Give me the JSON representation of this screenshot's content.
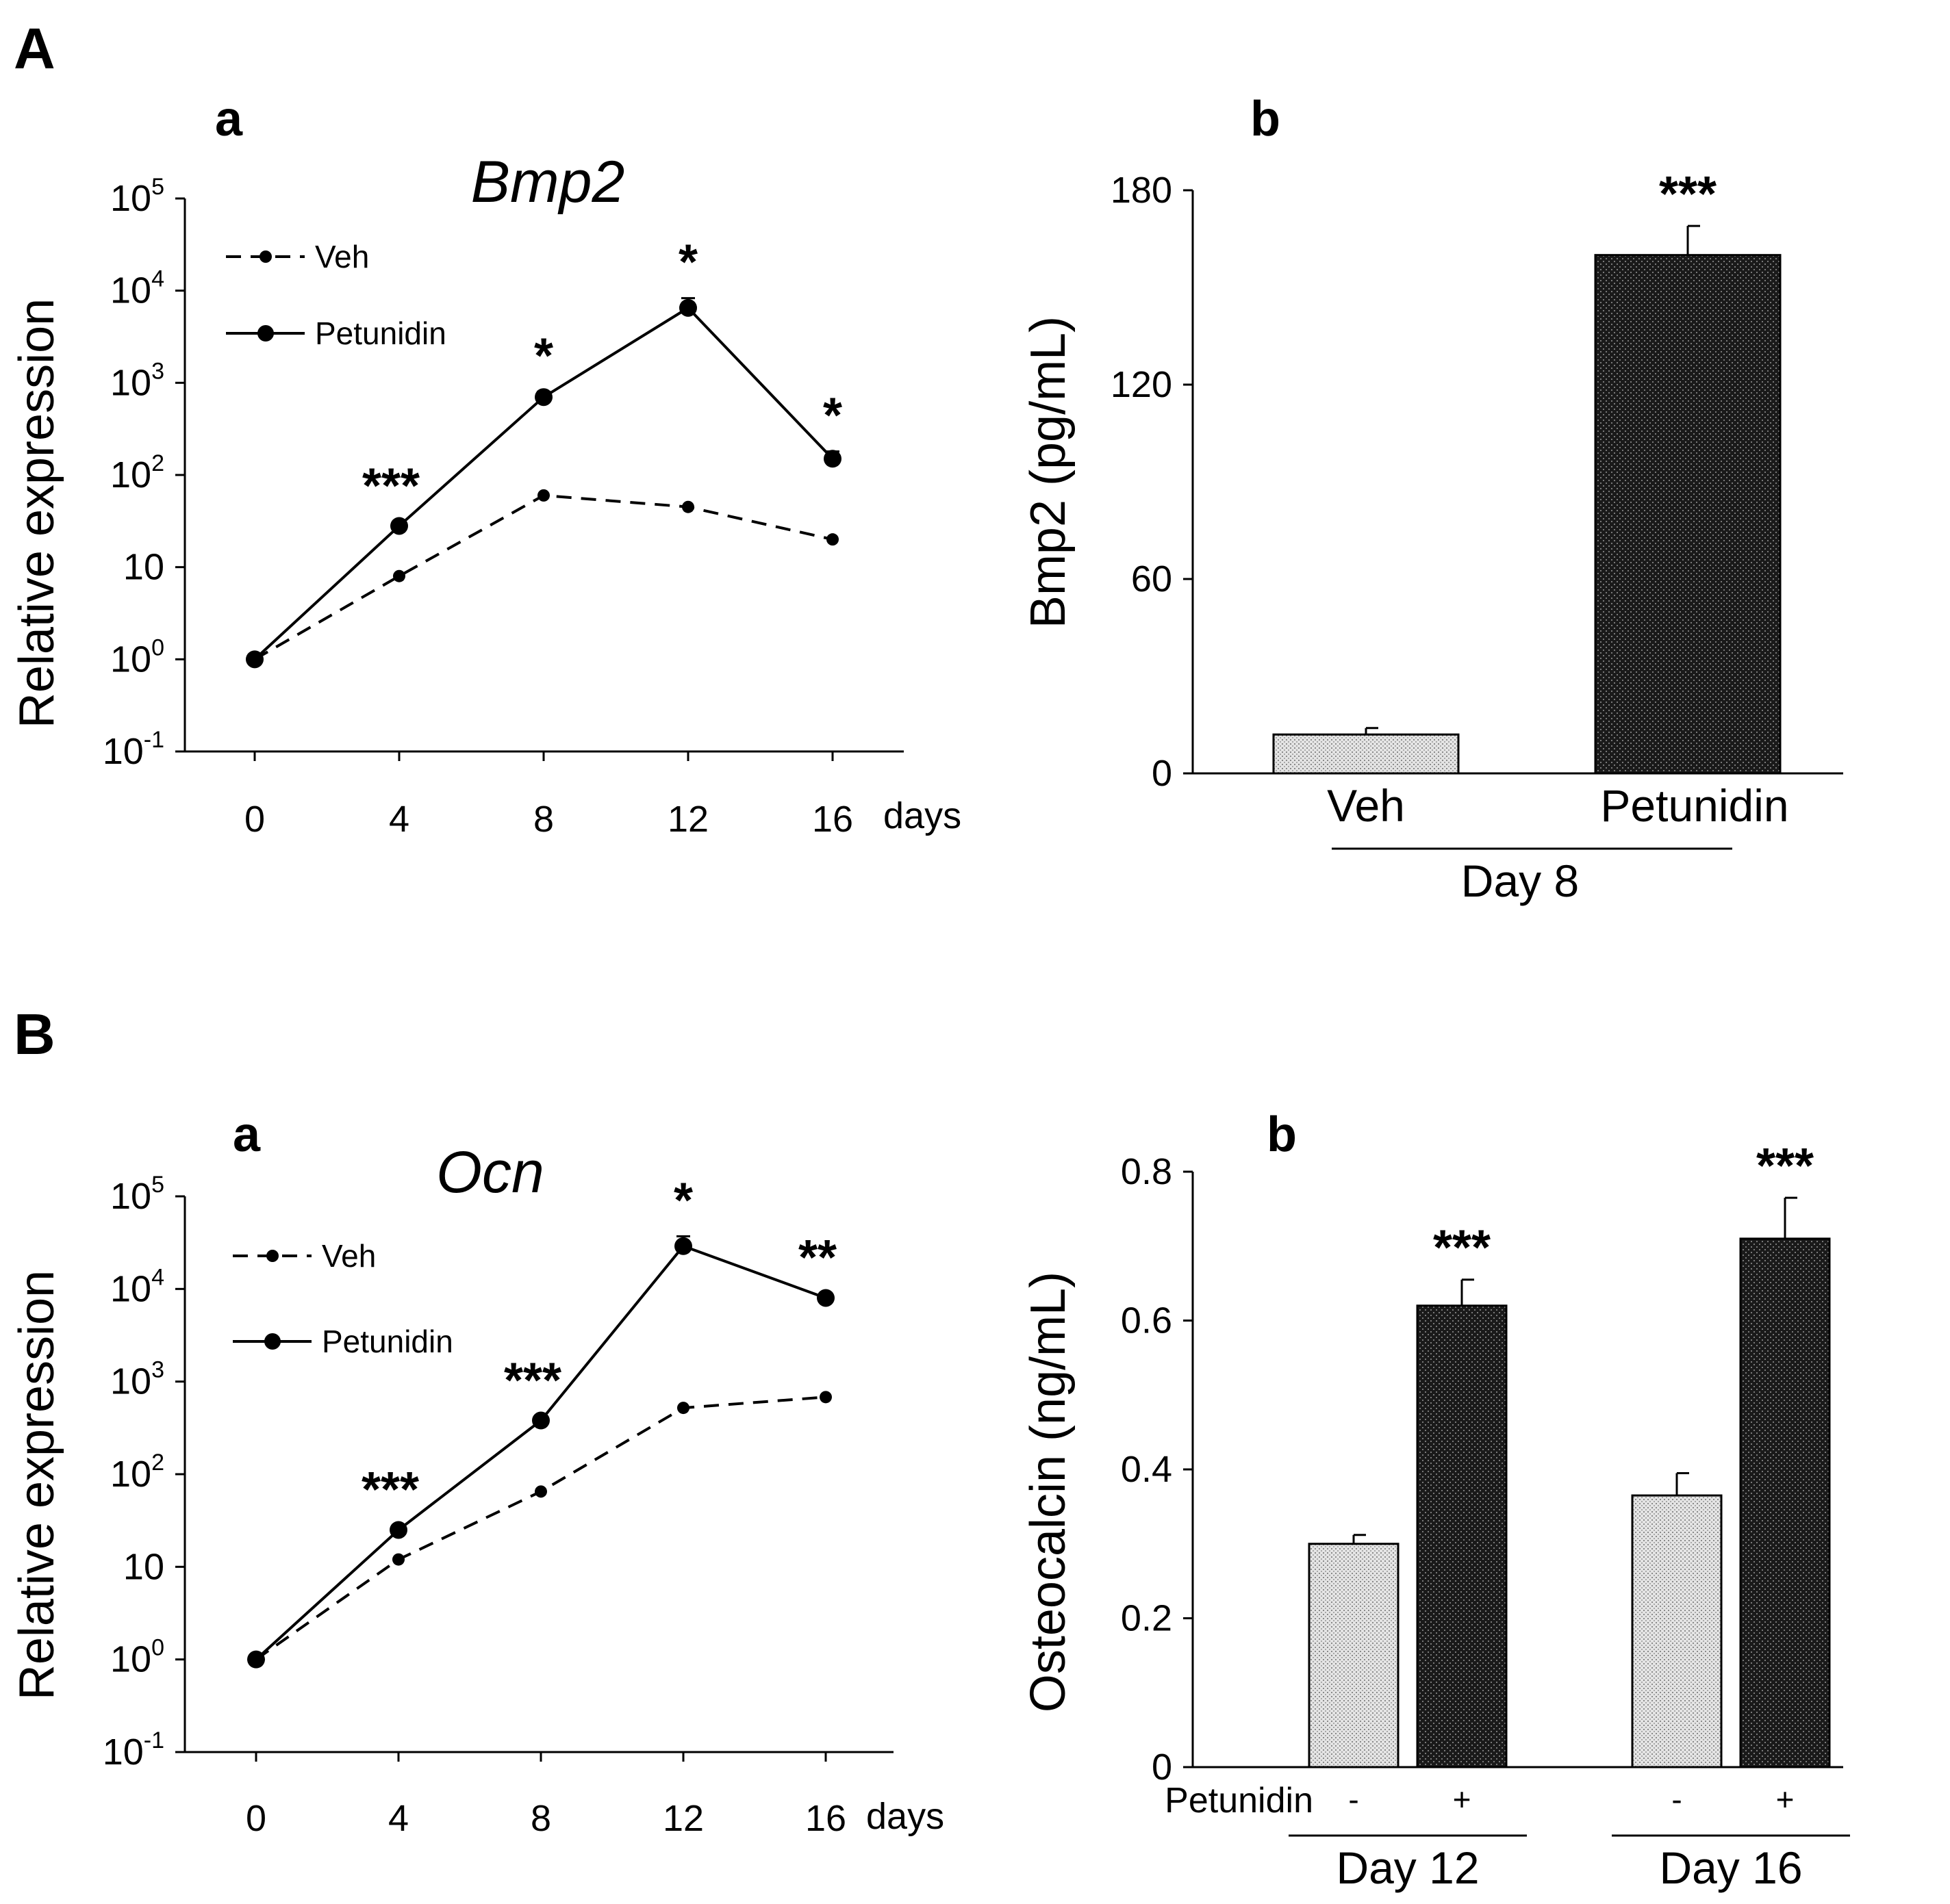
{
  "panels": {
    "A": {
      "letter": "A"
    },
    "B": {
      "letter": "B"
    }
  },
  "legend": {
    "veh": "Veh",
    "petunidin": "Petunidin"
  },
  "chart_data": [
    {
      "id": "Aa",
      "type": "line",
      "subpanel": "a",
      "title": "Bmp2",
      "ylabel": "Relative expression",
      "xunit": "days",
      "yscale": "log10",
      "ylim_exp": [
        -1,
        5
      ],
      "ytick_labels": [
        {
          "base": "10",
          "exp": "-1"
        },
        {
          "base": "10",
          "exp": "0"
        },
        {
          "base": "10",
          "exp": ""
        },
        {
          "base": "10",
          "exp": "2"
        },
        {
          "base": "10",
          "exp": "3"
        },
        {
          "base": "10",
          "exp": "4"
        },
        {
          "base": "10",
          "exp": "5"
        }
      ],
      "x": [
        "0",
        "4",
        "8",
        "12",
        "16"
      ],
      "series": [
        {
          "name": "Veh",
          "values": [
            1,
            8,
            60,
            45,
            20
          ]
        },
        {
          "name": "Petunidin",
          "values": [
            1,
            28,
            700,
            6500,
            150
          ],
          "errors_up": [
            0,
            3,
            100,
            1800,
            30
          ]
        }
      ],
      "annotations": [
        "",
        "***",
        "*",
        "*",
        "*"
      ]
    },
    {
      "id": "Ab",
      "type": "bar",
      "subpanel": "b",
      "ylabel": "Bmp2 (pg/mL)",
      "ylim": [
        0,
        180
      ],
      "yticks": [
        "0",
        "60",
        "120",
        "180"
      ],
      "categories": [
        "Veh",
        "Petunidin"
      ],
      "values": [
        12,
        160
      ],
      "errors": [
        2,
        9
      ],
      "annotations": [
        "",
        "***"
      ],
      "group_label": "Day 8"
    },
    {
      "id": "Ba",
      "type": "line",
      "subpanel": "a",
      "title": "Ocn",
      "ylabel": "Relative expression",
      "xunit": "days",
      "yscale": "log10",
      "ylim_exp": [
        -1,
        5
      ],
      "ytick_labels": [
        {
          "base": "10",
          "exp": "-1"
        },
        {
          "base": "10",
          "exp": "0"
        },
        {
          "base": "10",
          "exp": ""
        },
        {
          "base": "10",
          "exp": "2"
        },
        {
          "base": "10",
          "exp": "3"
        },
        {
          "base": "10",
          "exp": "4"
        },
        {
          "base": "10",
          "exp": "5"
        }
      ],
      "x": [
        "0",
        "4",
        "8",
        "12",
        "16"
      ],
      "series": [
        {
          "name": "Veh",
          "values": [
            1,
            12,
            65,
            520,
            680
          ]
        },
        {
          "name": "Petunidin",
          "values": [
            1,
            25,
            380,
            29000,
            8000
          ],
          "errors_up": [
            0,
            3,
            40,
            8000,
            900
          ]
        }
      ],
      "annotations": [
        "",
        "***",
        "***",
        "*",
        "**"
      ]
    },
    {
      "id": "Bb",
      "type": "bar",
      "subpanel": "b",
      "ylabel": "Osteocalcin (ng/mL)",
      "ylim": [
        0,
        0.8
      ],
      "yticks": [
        "0",
        "0.2",
        "0.4",
        "0.6",
        "0.8"
      ],
      "row_label": "Petunidin",
      "groups": [
        {
          "label": "Day 12",
          "signs": [
            "-",
            "+"
          ],
          "values": [
            0.3,
            0.62
          ],
          "errors": [
            0.012,
            0.035
          ],
          "annotations": [
            "",
            "***"
          ]
        },
        {
          "label": "Day 16",
          "signs": [
            "-",
            "+"
          ],
          "values": [
            0.365,
            0.71
          ],
          "errors": [
            0.03,
            0.055
          ],
          "annotations": [
            "",
            "***"
          ]
        }
      ]
    }
  ]
}
